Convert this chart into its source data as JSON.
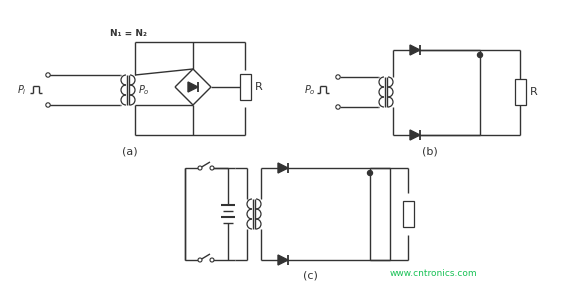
{
  "bg_color": "#ffffff",
  "line_color": "#333333",
  "label_a": "(a)",
  "label_b": "(b)",
  "label_c": "(c)",
  "n1n2": "N₁ = N₂",
  "watermark": "www.cntronics.com",
  "watermark_color": "#00bb44"
}
